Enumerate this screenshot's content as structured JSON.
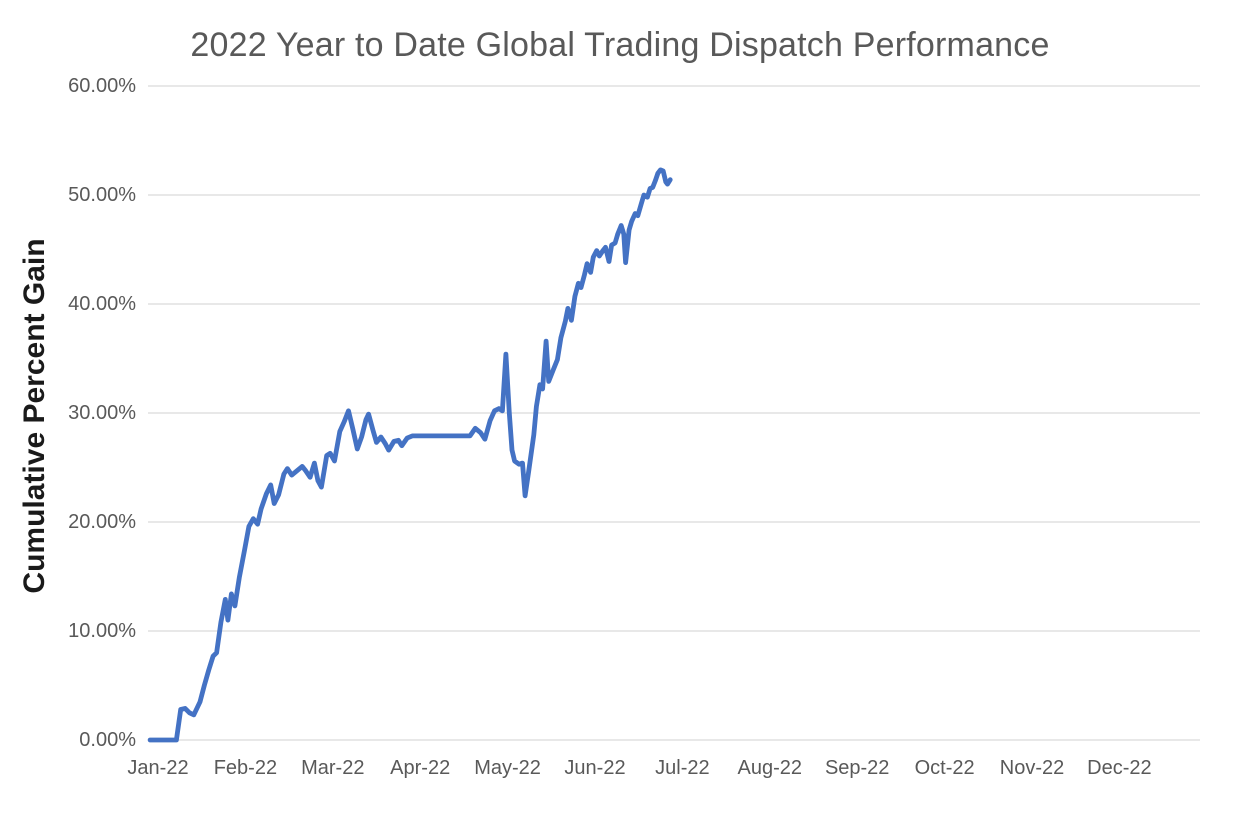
{
  "chart_data": {
    "type": "line",
    "title": "2022 Year to Date Global Trading Dispatch Performance",
    "xlabel": "",
    "ylabel": "Cumulative Percent Gain",
    "x_categories": [
      "Jan-22",
      "Feb-22",
      "Mar-22",
      "Apr-22",
      "May-22",
      "Jun-22",
      "Jul-22",
      "Aug-22",
      "Sep-22",
      "Oct-22",
      "Nov-22",
      "Dec-22"
    ],
    "y_tick_labels": [
      "0.00%",
      "10.00%",
      "20.00%",
      "30.00%",
      "40.00%",
      "50.00%",
      "60.00%"
    ],
    "ylim": [
      0,
      60
    ],
    "y_unit": "percent",
    "x_axis_note": "axis spans Jan-22 through Dec-22; data series ends in late Jun-22",
    "grid": "horizontal",
    "legend": "none",
    "series": [
      {
        "x_unit": "months_since_jan_22_tick",
        "points": [
          [
            -0.09,
            0.0
          ],
          [
            0.1,
            0.0
          ],
          [
            0.21,
            0.0
          ],
          [
            0.26,
            2.8
          ],
          [
            0.31,
            2.9
          ],
          [
            0.36,
            2.5
          ],
          [
            0.41,
            2.3
          ],
          [
            0.48,
            3.5
          ],
          [
            0.53,
            5.0
          ],
          [
            0.58,
            6.4
          ],
          [
            0.63,
            7.7
          ],
          [
            0.67,
            8.0
          ],
          [
            0.72,
            10.8
          ],
          [
            0.77,
            12.9
          ],
          [
            0.8,
            11.0
          ],
          [
            0.84,
            13.4
          ],
          [
            0.88,
            12.3
          ],
          [
            0.93,
            14.9
          ],
          [
            0.99,
            17.4
          ],
          [
            1.04,
            19.6
          ],
          [
            1.09,
            20.3
          ],
          [
            1.14,
            19.8
          ],
          [
            1.18,
            21.2
          ],
          [
            1.24,
            22.6
          ],
          [
            1.29,
            23.4
          ],
          [
            1.33,
            21.7
          ],
          [
            1.38,
            22.5
          ],
          [
            1.44,
            24.4
          ],
          [
            1.48,
            24.9
          ],
          [
            1.53,
            24.3
          ],
          [
            1.59,
            24.7
          ],
          [
            1.65,
            25.1
          ],
          [
            1.69,
            24.7
          ],
          [
            1.74,
            24.1
          ],
          [
            1.79,
            25.4
          ],
          [
            1.83,
            23.8
          ],
          [
            1.87,
            23.2
          ],
          [
            1.93,
            26.1
          ],
          [
            1.97,
            26.3
          ],
          [
            2.02,
            25.6
          ],
          [
            2.08,
            28.3
          ],
          [
            2.13,
            29.2
          ],
          [
            2.18,
            30.2
          ],
          [
            2.23,
            28.5
          ],
          [
            2.28,
            26.7
          ],
          [
            2.33,
            27.8
          ],
          [
            2.38,
            29.4
          ],
          [
            2.41,
            29.9
          ],
          [
            2.46,
            28.4
          ],
          [
            2.5,
            27.3
          ],
          [
            2.55,
            27.8
          ],
          [
            2.6,
            27.2
          ],
          [
            2.64,
            26.6
          ],
          [
            2.7,
            27.4
          ],
          [
            2.75,
            27.5
          ],
          [
            2.79,
            27.0
          ],
          [
            2.85,
            27.7
          ],
          [
            2.91,
            27.9
          ],
          [
            3.12,
            27.9
          ],
          [
            3.35,
            27.9
          ],
          [
            3.57,
            27.9
          ],
          [
            3.63,
            28.6
          ],
          [
            3.69,
            28.2
          ],
          [
            3.74,
            27.6
          ],
          [
            3.8,
            29.3
          ],
          [
            3.85,
            30.2
          ],
          [
            3.9,
            30.4
          ],
          [
            3.94,
            30.2
          ],
          [
            3.98,
            35.4
          ],
          [
            4.02,
            30.0
          ],
          [
            4.05,
            26.6
          ],
          [
            4.08,
            25.6
          ],
          [
            4.13,
            25.3
          ],
          [
            4.17,
            25.4
          ],
          [
            4.2,
            22.4
          ],
          [
            4.24,
            24.6
          ],
          [
            4.3,
            28.0
          ],
          [
            4.33,
            30.6
          ],
          [
            4.37,
            32.6
          ],
          [
            4.4,
            32.2
          ],
          [
            4.44,
            36.6
          ],
          [
            4.47,
            32.9
          ],
          [
            4.52,
            33.9
          ],
          [
            4.57,
            34.9
          ],
          [
            4.61,
            36.9
          ],
          [
            4.66,
            38.4
          ],
          [
            4.69,
            39.6
          ],
          [
            4.73,
            38.5
          ],
          [
            4.77,
            40.7
          ],
          [
            4.81,
            41.9
          ],
          [
            4.84,
            41.5
          ],
          [
            4.88,
            42.7
          ],
          [
            4.91,
            43.7
          ],
          [
            4.95,
            42.9
          ],
          [
            4.98,
            44.3
          ],
          [
            5.02,
            44.9
          ],
          [
            5.05,
            44.4
          ],
          [
            5.09,
            44.9
          ],
          [
            5.12,
            45.2
          ],
          [
            5.16,
            43.9
          ],
          [
            5.19,
            45.4
          ],
          [
            5.23,
            45.6
          ],
          [
            5.26,
            46.4
          ],
          [
            5.3,
            47.2
          ],
          [
            5.33,
            46.4
          ],
          [
            5.35,
            43.8
          ],
          [
            5.39,
            46.8
          ],
          [
            5.42,
            47.6
          ],
          [
            5.46,
            48.3
          ],
          [
            5.49,
            48.1
          ],
          [
            5.53,
            49.2
          ],
          [
            5.56,
            50.0
          ],
          [
            5.6,
            49.8
          ],
          [
            5.63,
            50.6
          ],
          [
            5.66,
            50.7
          ],
          [
            5.69,
            51.3
          ],
          [
            5.72,
            52.0
          ],
          [
            5.75,
            52.3
          ],
          [
            5.78,
            52.2
          ],
          [
            5.81,
            51.2
          ],
          [
            5.83,
            51.0
          ],
          [
            5.86,
            51.4
          ]
        ]
      }
    ]
  },
  "colors": {
    "line": "#4472C4",
    "gridline": "#D9D9D9",
    "title_text": "#595959",
    "tick_text": "#595959",
    "axis_title_text": "#1A1A1A",
    "background": "#FFFFFF"
  }
}
